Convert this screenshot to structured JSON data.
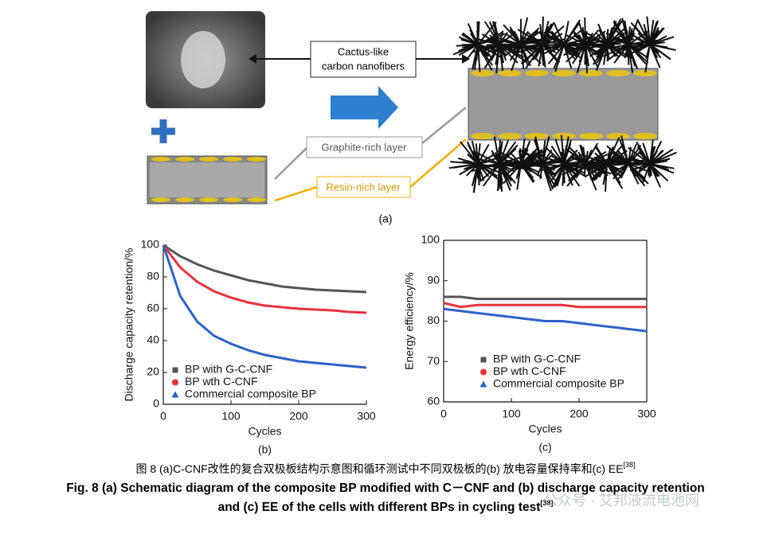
{
  "diagram": {
    "fiber_label": [
      "Cactus-like",
      "carbon nanofibers"
    ],
    "graphite_label": "Graphite-rich layer",
    "resin_label": "Resin-nich layer",
    "panel_label": "(a)"
  },
  "chart_data": [
    {
      "type": "line",
      "label": "(b)",
      "xlabel": "Cycles",
      "ylabel": "Discharge capacity retention/%",
      "x": [
        0,
        25,
        50,
        75,
        100,
        125,
        150,
        175,
        200,
        225,
        250,
        275,
        300
      ],
      "xlim": [
        0,
        300
      ],
      "xticks": [
        0,
        100,
        200,
        300
      ],
      "ylim": [
        0,
        100
      ],
      "yticks": [
        0,
        20,
        40,
        60,
        80,
        100
      ],
      "series": [
        {
          "name": "BP with G-C-CNF",
          "color": "#555555",
          "marker": "square",
          "values": [
            100,
            93,
            88,
            84,
            81,
            78,
            76,
            74,
            73,
            72,
            71.5,
            71,
            70.5
          ]
        },
        {
          "name": "BP wth C-CNF",
          "color": "#e8303a",
          "marker": "circle",
          "values": [
            100,
            86,
            77,
            71,
            67,
            64,
            62,
            61,
            60,
            59.5,
            59,
            58,
            57.5
          ]
        },
        {
          "name": "Commercial composite BP",
          "color": "#2a62c9",
          "marker": "triangle",
          "values": [
            100,
            68,
            52,
            43,
            38,
            34,
            31,
            29,
            27,
            26,
            25,
            24,
            23
          ]
        }
      ]
    },
    {
      "type": "line",
      "label": "(c)",
      "xlabel": "Cycles",
      "ylabel": "Energy efficiency/%",
      "frame": true,
      "x": [
        0,
        25,
        50,
        75,
        100,
        125,
        150,
        175,
        200,
        225,
        250,
        275,
        300
      ],
      "xlim": [
        0,
        300
      ],
      "xticks": [
        0,
        100,
        200,
        300
      ],
      "ylim": [
        60,
        100
      ],
      "yticks": [
        60,
        70,
        80,
        90,
        100
      ],
      "series": [
        {
          "name": "BP with G-C-CNF",
          "color": "#555555",
          "marker": "square",
          "values": [
            86,
            86,
            85.5,
            85.5,
            85.5,
            85.5,
            85.5,
            85.5,
            85.5,
            85.5,
            85.5,
            85.5,
            85.5
          ]
        },
        {
          "name": "BP wth C-CNF",
          "color": "#e8303a",
          "marker": "circle",
          "values": [
            84.5,
            83.5,
            84,
            84,
            84,
            84,
            84,
            84,
            83.5,
            83.5,
            83.5,
            83.5,
            83.5
          ]
        },
        {
          "name": "Commercial composite BP",
          "color": "#2a62c9",
          "marker": "triangle",
          "values": [
            83,
            82.5,
            82,
            81.5,
            81,
            80.5,
            80,
            80,
            79.5,
            79,
            78.5,
            78,
            77.5
          ]
        }
      ]
    }
  ],
  "caption_cn": {
    "text": "图 8   (a)C-CNF改性的复合双极板结构示意图和循环测试中不同双极板的(b) 放电容量保持率和(c) EE",
    "ref": "[38]"
  },
  "caption_en": {
    "line1": "Fig. 8   (a) Schematic diagram of the composite BP modified with C－CNF and (b) discharge capacity retention",
    "line2": "and (c) EE of the cells with different BPs in cycling test",
    "ref": "[38]"
  },
  "watermark": "公众号 · 艾邦液流电池网"
}
